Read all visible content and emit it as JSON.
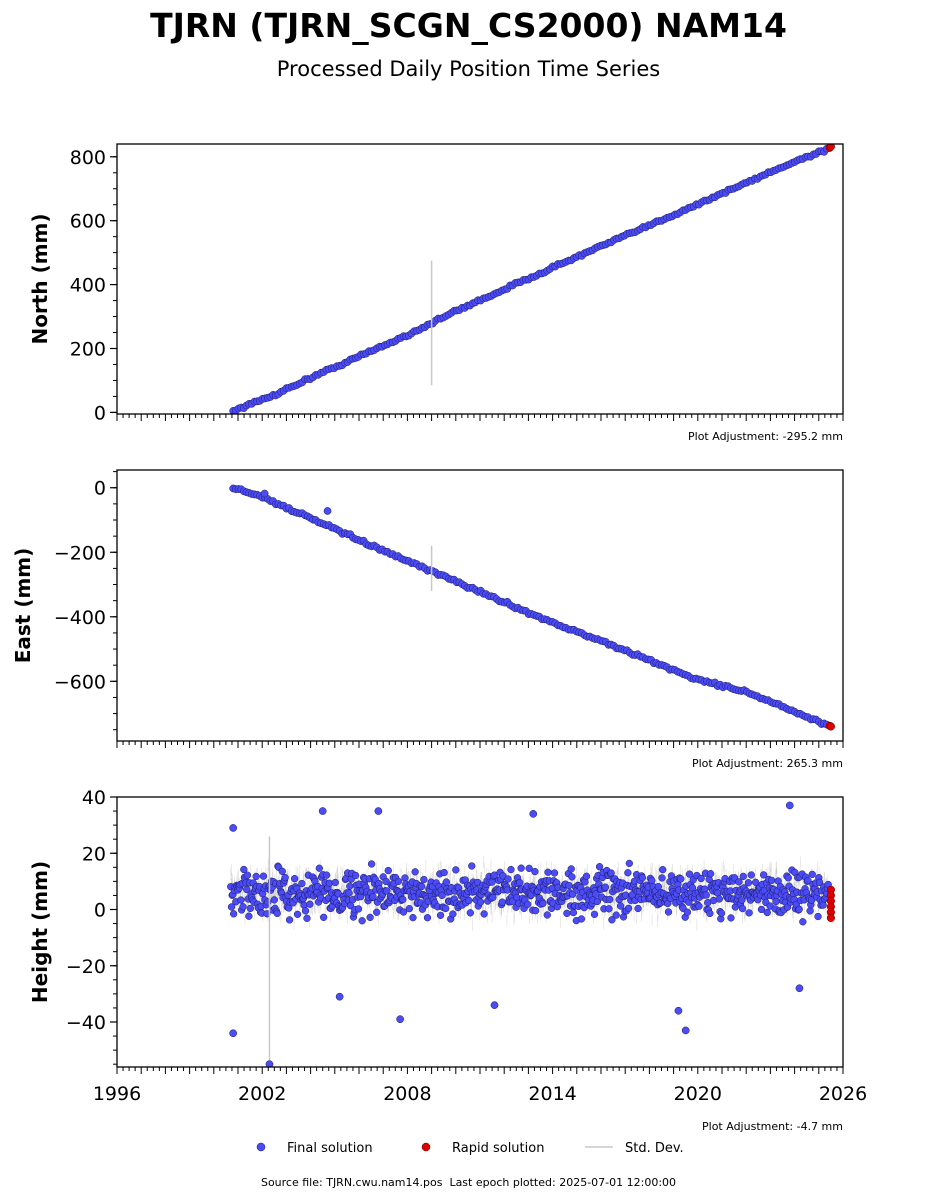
{
  "title": "TJRN (TJRN_SCGN_CS2000) NAM14",
  "subtitle": "Processed Daily Position Time Series",
  "colors": {
    "final": "#4b4bf7",
    "rapid": "#e00000",
    "std_dev": "#c8c8c8",
    "axis": "#000000"
  },
  "legend": {
    "final_label": "Final solution",
    "rapid_label": "Rapid solution",
    "std_label": "Std. Dev."
  },
  "footer": {
    "source_label": "Source file:",
    "source_file": "TJRN.cwu.nam14.pos",
    "last_epoch_label": "Last epoch plotted:",
    "last_epoch": "2025-07-01 12:00:00"
  },
  "chart_data": [
    {
      "type": "scatter",
      "ylabel": "North (mm)",
      "adjustment": "Plot Adjustment: -295.2 mm",
      "xlim": [
        1996,
        2026
      ],
      "ylim": [
        -5,
        840
      ],
      "yticks": [
        0,
        200,
        400,
        600,
        800
      ],
      "yminor_step": 50,
      "series": [
        {
          "name": "Final solution",
          "x": [
            2000.8,
            2001.5,
            2002.5,
            2004,
            2006,
            2008,
            2010,
            2012,
            2014,
            2016,
            2018,
            2020,
            2022,
            2024,
            2025.4
          ],
          "y": [
            5,
            25,
            55,
            108,
            175,
            242,
            317,
            385,
            453,
            520,
            585,
            652,
            718,
            785,
            825
          ]
        },
        {
          "name": "Rapid solution",
          "x": [
            2025.45,
            2025.5
          ],
          "y": [
            828,
            832
          ]
        }
      ],
      "std_dev": {
        "x": 2009,
        "y": 280,
        "half_height": 195
      }
    },
    {
      "type": "scatter",
      "ylabel": "East (mm)",
      "adjustment": "Plot Adjustment: 265.3 mm",
      "xlim": [
        1996,
        2026
      ],
      "ylim": [
        -785,
        55
      ],
      "yticks": [
        0,
        -200,
        -400,
        -600
      ],
      "yminor_step": 50,
      "series": [
        {
          "name": "Final solution",
          "x": [
            2000.8,
            2002,
            2004,
            2006,
            2008,
            2010,
            2012,
            2014,
            2016,
            2018,
            2020,
            2022,
            2024,
            2025.4
          ],
          "y": [
            0,
            -28,
            -95,
            -162,
            -228,
            -290,
            -355,
            -418,
            -475,
            -535,
            -595,
            -632,
            -695,
            -738
          ],
          "outliers": [
            {
              "x": 2002.1,
              "y": -18
            },
            {
              "x": 2004.7,
              "y": -72
            }
          ]
        },
        {
          "name": "Rapid solution",
          "x": [
            2025.45,
            2025.5
          ],
          "y": [
            -738,
            -740
          ]
        }
      ],
      "std_dev": {
        "x": 2009,
        "y": -250,
        "half_height": 70
      }
    },
    {
      "type": "scatter",
      "ylabel": "Height (mm)",
      "xlabel": "",
      "adjustment": "Plot Adjustment: -4.7 mm",
      "xlim": [
        1996,
        2026
      ],
      "ylim": [
        -56,
        40
      ],
      "yticks": [
        40,
        20,
        0,
        -20,
        -40
      ],
      "xticks": [
        1996,
        2002,
        2008,
        2014,
        2020,
        2026
      ],
      "yminor_step": 5,
      "series": [
        {
          "name": "Final solution",
          "x_range": [
            2000.7,
            2025.4
          ],
          "mean": 6,
          "spread": 10,
          "outliers": [
            {
              "x": 2000.8,
              "y": 29
            },
            {
              "x": 2000.8,
              "y": -44
            },
            {
              "x": 2004.5,
              "y": 35
            },
            {
              "x": 2006.8,
              "y": 35
            },
            {
              "x": 2013.2,
              "y": 34
            },
            {
              "x": 2023.8,
              "y": 37
            },
            {
              "x": 2019.2,
              "y": -36
            },
            {
              "x": 2019.5,
              "y": -43
            },
            {
              "x": 2011.6,
              "y": -34
            },
            {
              "x": 2007.7,
              "y": -39
            },
            {
              "x": 2005.2,
              "y": -31
            },
            {
              "x": 2002.3,
              "y": -55
            },
            {
              "x": 2024.2,
              "y": -28
            }
          ]
        },
        {
          "name": "Rapid solution",
          "x": [
            2025.5,
            2025.5,
            2025.5,
            2025.5,
            2025.5,
            2025.5
          ],
          "y": [
            7,
            5,
            3,
            1,
            -1,
            -3
          ]
        }
      ]
    }
  ]
}
